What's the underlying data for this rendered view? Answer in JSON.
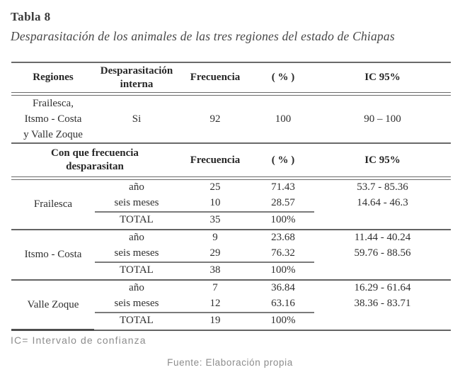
{
  "page": {
    "title": "Tabla 8",
    "subtitle": "Desparasitación de los animales de las tres regiones del estado de Chiapas",
    "footnote": "IC= Intervalo de confianza",
    "source": "Fuente: Elaboración propia"
  },
  "colors": {
    "rule": "#6a6a6a",
    "text": "#2f2f2f",
    "muted": "#8d8d8d"
  },
  "table1": {
    "headers": {
      "regiones": "Regiones",
      "interna_l1": "Desparasitación",
      "interna_l2": "interna",
      "frecuencia": "Frecuencia",
      "pct": "( % )",
      "ic": "IC 95%"
    },
    "row": {
      "region_l1": "Frailesca,",
      "region_l2": "Itsmo - Costa",
      "region_l3": "y Valle Zoque",
      "interna": "Si",
      "frecuencia": "92",
      "pct": "100",
      "ic": "90 – 100"
    }
  },
  "table2": {
    "headers": {
      "freq_l1": "Con que frecuencia",
      "freq_l2": "desparasitan",
      "frecuencia": "Frecuencia",
      "pct": "( % )",
      "ic": "IC 95%"
    },
    "sections": [
      {
        "region": "Frailesca",
        "rows": [
          {
            "label": "año",
            "frecuencia": "25",
            "pct": "71.43",
            "ic": "53.7 - 85.36"
          },
          {
            "label": "seis meses",
            "frecuencia": "10",
            "pct": "28.57",
            "ic": "14.64 - 46.3"
          }
        ],
        "total": {
          "label": "TOTAL",
          "frecuencia": "35",
          "pct": "100%"
        }
      },
      {
        "region": "Itsmo - Costa",
        "rows": [
          {
            "label": "año",
            "frecuencia": "9",
            "pct": "23.68",
            "ic": "11.44 - 40.24"
          },
          {
            "label": "seis meses",
            "frecuencia": "29",
            "pct": "76.32",
            "ic": "59.76 - 88.56"
          }
        ],
        "total": {
          "label": "TOTAL",
          "frecuencia": "38",
          "pct": "100%"
        }
      },
      {
        "region": "Valle Zoque",
        "rows": [
          {
            "label": "año",
            "frecuencia": "7",
            "pct": "36.84",
            "ic": "16.29 - 61.64"
          },
          {
            "label": "seis meses",
            "frecuencia": "12",
            "pct": "63.16",
            "ic": "38.36 - 83.71"
          }
        ],
        "total": {
          "label": "TOTAL",
          "frecuencia": "19",
          "pct": "100%"
        }
      }
    ]
  }
}
